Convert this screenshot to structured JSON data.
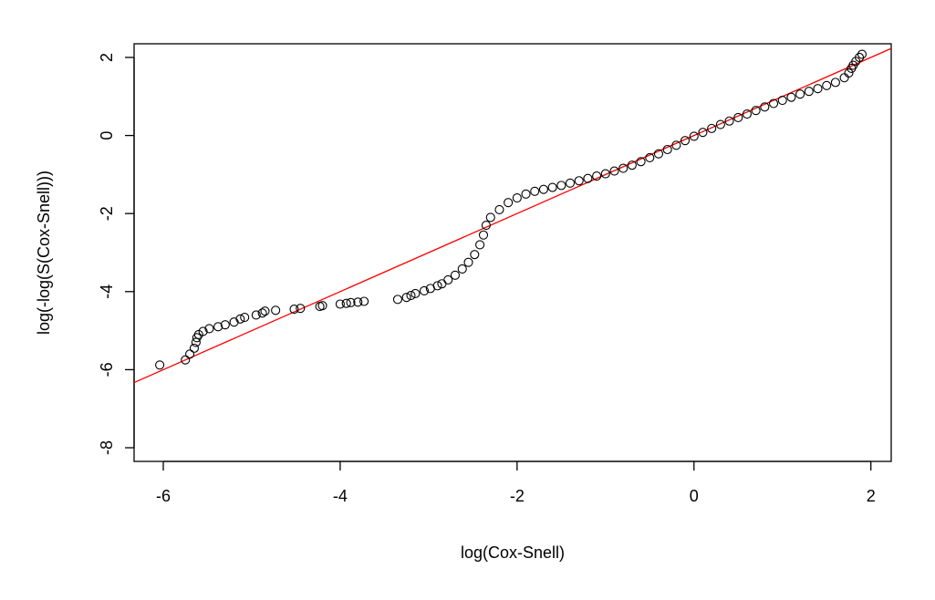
{
  "chart_data": {
    "type": "scatter",
    "xlabel": "log(Cox-Snell)",
    "ylabel": "log(-log(S(Cox-Snell)))",
    "xlim": [
      -6.33,
      2.23
    ],
    "ylim": [
      -8.35,
      2.35
    ],
    "x_ticks": [
      -6,
      -4,
      -2,
      0,
      2
    ],
    "y_ticks": [
      -8,
      -6,
      -4,
      -2,
      0,
      2
    ],
    "x_tick_labels": [
      "-6",
      "-4",
      "-2",
      "0",
      "2"
    ],
    "y_tick_labels": [
      "-8",
      "-6",
      "-4",
      "-2",
      "0",
      "2"
    ],
    "grid": false,
    "legend": "none",
    "point_color": "#000000",
    "line_color": "#ff0000",
    "reference_line": {
      "intercept": 0.0,
      "slope": 1.0
    },
    "series": [
      {
        "points": [
          [
            -6.04,
            -5.88
          ],
          [
            -5.75,
            -5.75
          ],
          [
            -5.7,
            -5.6
          ],
          [
            -5.65,
            -5.45
          ],
          [
            -5.63,
            -5.3
          ],
          [
            -5.62,
            -5.18
          ],
          [
            -5.6,
            -5.1
          ],
          [
            -5.55,
            -5.02
          ],
          [
            -5.48,
            -4.95
          ],
          [
            -5.38,
            -4.9
          ],
          [
            -5.3,
            -4.85
          ],
          [
            -5.2,
            -4.78
          ],
          [
            -5.13,
            -4.7
          ],
          [
            -5.08,
            -4.66
          ],
          [
            -4.95,
            -4.6
          ],
          [
            -4.88,
            -4.55
          ],
          [
            -4.85,
            -4.5
          ],
          [
            -4.73,
            -4.48
          ],
          [
            -4.52,
            -4.45
          ],
          [
            -4.45,
            -4.43
          ],
          [
            -4.23,
            -4.38
          ],
          [
            -4.2,
            -4.36
          ],
          [
            -4.0,
            -4.32
          ],
          [
            -3.93,
            -4.3
          ],
          [
            -3.88,
            -4.28
          ],
          [
            -3.8,
            -4.27
          ],
          [
            -3.73,
            -4.25
          ],
          [
            -3.35,
            -4.2
          ],
          [
            -3.25,
            -4.15
          ],
          [
            -3.2,
            -4.1
          ],
          [
            -3.15,
            -4.05
          ],
          [
            -3.05,
            -3.98
          ],
          [
            -2.98,
            -3.92
          ],
          [
            -2.9,
            -3.85
          ],
          [
            -2.85,
            -3.8
          ],
          [
            -2.78,
            -3.7
          ],
          [
            -2.7,
            -3.58
          ],
          [
            -2.62,
            -3.42
          ],
          [
            -2.55,
            -3.25
          ],
          [
            -2.48,
            -3.05
          ],
          [
            -2.42,
            -2.8
          ],
          [
            -2.38,
            -2.55
          ],
          [
            -2.35,
            -2.3
          ],
          [
            -2.3,
            -2.1
          ],
          [
            -2.2,
            -1.9
          ],
          [
            -2.1,
            -1.72
          ],
          [
            -2.0,
            -1.6
          ],
          [
            -1.9,
            -1.5
          ],
          [
            -1.8,
            -1.43
          ],
          [
            -1.7,
            -1.38
          ],
          [
            -1.6,
            -1.33
          ],
          [
            -1.5,
            -1.28
          ],
          [
            -1.4,
            -1.22
          ],
          [
            -1.3,
            -1.16
          ],
          [
            -1.2,
            -1.1
          ],
          [
            -1.1,
            -1.04
          ],
          [
            -1.0,
            -0.98
          ],
          [
            -0.9,
            -0.91
          ],
          [
            -0.8,
            -0.84
          ],
          [
            -0.7,
            -0.76
          ],
          [
            -0.6,
            -0.67
          ],
          [
            -0.5,
            -0.57
          ],
          [
            -0.4,
            -0.47
          ],
          [
            -0.3,
            -0.36
          ],
          [
            -0.2,
            -0.25
          ],
          [
            -0.1,
            -0.13
          ],
          [
            0.0,
            -0.02
          ],
          [
            0.1,
            0.08
          ],
          [
            0.2,
            0.18
          ],
          [
            0.3,
            0.28
          ],
          [
            0.4,
            0.37
          ],
          [
            0.5,
            0.46
          ],
          [
            0.6,
            0.55
          ],
          [
            0.7,
            0.64
          ],
          [
            0.8,
            0.73
          ],
          [
            0.9,
            0.82
          ],
          [
            1.0,
            0.9
          ],
          [
            1.1,
            0.98
          ],
          [
            1.2,
            1.06
          ],
          [
            1.3,
            1.13
          ],
          [
            1.4,
            1.2
          ],
          [
            1.5,
            1.28
          ],
          [
            1.6,
            1.36
          ],
          [
            1.7,
            1.48
          ],
          [
            1.75,
            1.6
          ],
          [
            1.78,
            1.72
          ],
          [
            1.8,
            1.8
          ],
          [
            1.83,
            1.9
          ],
          [
            1.87,
            2.0
          ],
          [
            1.9,
            2.08
          ]
        ]
      }
    ]
  }
}
